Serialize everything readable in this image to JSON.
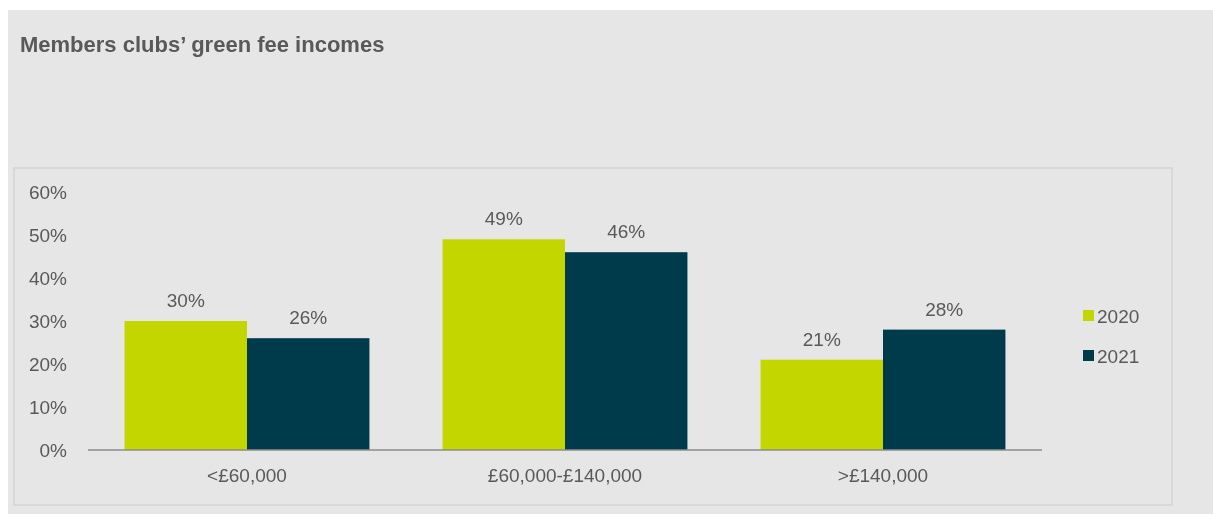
{
  "chart_data": {
    "type": "bar",
    "title": "Members clubs’ green fee incomes",
    "categories": [
      "<£60,000",
      "£60,000-£140,000",
      ">£140,000"
    ],
    "series": [
      {
        "name": "2020",
        "color": "#c4d600",
        "values": [
          30,
          49,
          21
        ],
        "value_labels": [
          "30%",
          "49%",
          "21%"
        ]
      },
      {
        "name": "2021",
        "color": "#003b4c",
        "values": [
          26,
          46,
          28
        ],
        "value_labels": [
          "26%",
          "46%",
          "28%"
        ]
      }
    ],
    "ylim": [
      0,
      60
    ],
    "yticks": [
      {
        "value": 0,
        "label": "0%"
      },
      {
        "value": 10,
        "label": "10%"
      },
      {
        "value": 20,
        "label": "20%"
      },
      {
        "value": 30,
        "label": "30%"
      },
      {
        "value": 40,
        "label": "40%"
      },
      {
        "value": 50,
        "label": "50%"
      },
      {
        "value": 60,
        "label": "60%"
      }
    ],
    "grid": false,
    "legend": "right"
  }
}
